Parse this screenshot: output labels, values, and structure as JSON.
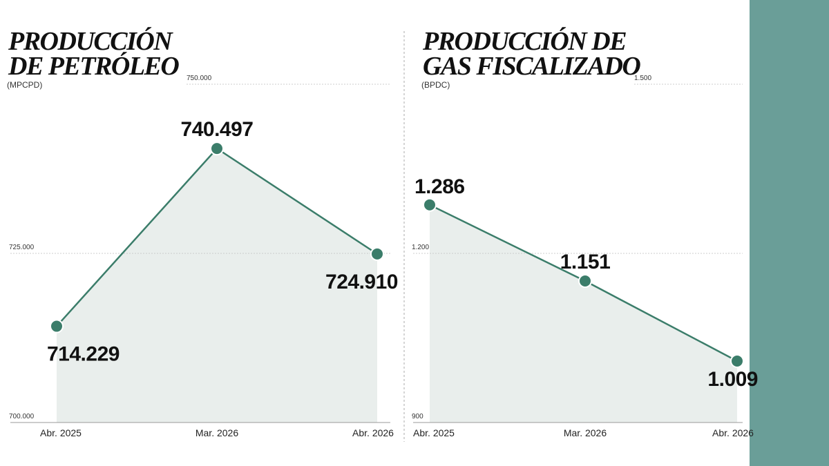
{
  "chart_data": [
    {
      "type": "line",
      "title": [
        "PRODUCCIÓN",
        "DE PETRÓLEO"
      ],
      "subtitle": "(MPCPD)",
      "categories": [
        "Abr. 2025",
        "Mar. 2026",
        "Abr. 2026"
      ],
      "values": [
        714229,
        740497,
        724910
      ],
      "value_labels": [
        "714.229",
        "740.497",
        "724.910"
      ],
      "color": "#3b7d6a",
      "ylim": [
        700000,
        750000
      ],
      "yticks": [
        {
          "value": 700000,
          "label": "700.000"
        },
        {
          "value": 725000,
          "label": "725.000"
        },
        {
          "value": 750000,
          "label": "750.000"
        }
      ],
      "grid": true
    },
    {
      "type": "line",
      "title": [
        "PRODUCCIÓN DE",
        "GAS FISCALIZADO"
      ],
      "subtitle": "(BPDC)",
      "categories": [
        "Abr. 2025",
        "Mar. 2026",
        "Abr. 2026"
      ],
      "values": [
        1286,
        1151,
        1009
      ],
      "value_labels": [
        "1.286",
        "1.151",
        "1.009"
      ],
      "color": "#3b7d6a",
      "ylim": [
        900,
        1500
      ],
      "yticks": [
        900,
        {
          "value": 1200,
          "label": "1.200"
        },
        {
          "value": 1500,
          "label": "1.500"
        }
      ],
      "grid": true
    }
  ]
}
